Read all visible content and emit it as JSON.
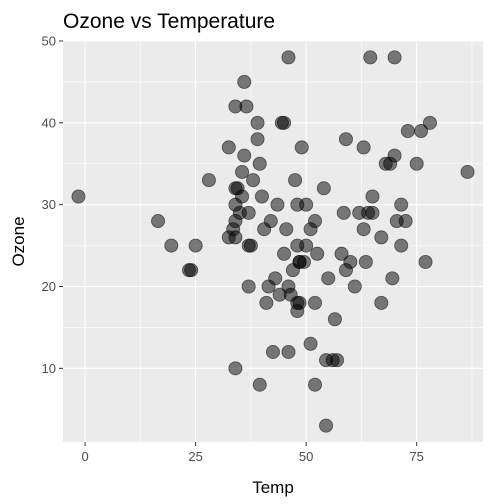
{
  "chart_data": {
    "type": "scatter",
    "title": "Ozone vs Temperature",
    "xlabel": "Temp",
    "ylabel": "Ozone",
    "xlim": [
      -5,
      90
    ],
    "ylim": [
      1,
      50
    ],
    "x_ticks": [
      0,
      25,
      50,
      75
    ],
    "x_tick_labels": [
      "0",
      "25",
      "50",
      "75"
    ],
    "y_ticks": [
      10,
      20,
      30,
      40,
      50
    ],
    "y_tick_labels": [
      "10",
      "20",
      "30",
      "40",
      "50"
    ],
    "x_minor": [
      12.5,
      37.5,
      62.5,
      87.5
    ],
    "y_minor": [
      15,
      25,
      35,
      45
    ],
    "grid": true,
    "colors": {
      "panel": "#ebebeb",
      "point": "#000000"
    },
    "point_alpha": 0.5,
    "points": [
      [
        -1.5,
        31
      ],
      [
        16.5,
        28
      ],
      [
        19.5,
        25
      ],
      [
        23.5,
        22
      ],
      [
        24,
        22
      ],
      [
        25,
        25
      ],
      [
        28,
        33
      ],
      [
        32.5,
        37
      ],
      [
        32.5,
        26
      ],
      [
        33.5,
        27
      ],
      [
        34,
        42
      ],
      [
        34,
        32
      ],
      [
        34,
        30
      ],
      [
        34,
        28
      ],
      [
        34.5,
        32
      ],
      [
        34,
        26
      ],
      [
        34,
        10
      ],
      [
        35,
        29
      ],
      [
        35.5,
        34
      ],
      [
        35.5,
        31
      ],
      [
        36,
        36
      ],
      [
        36,
        45
      ],
      [
        36.5,
        42
      ],
      [
        37,
        29
      ],
      [
        37.5,
        25
      ],
      [
        37,
        25
      ],
      [
        37,
        20
      ],
      [
        38,
        33
      ],
      [
        39,
        40
      ],
      [
        39,
        38
      ],
      [
        39.5,
        8
      ],
      [
        39.5,
        35
      ],
      [
        40,
        31
      ],
      [
        40.5,
        27
      ],
      [
        41,
        18
      ],
      [
        41.5,
        20
      ],
      [
        42,
        28
      ],
      [
        42.5,
        12
      ],
      [
        43,
        21
      ],
      [
        43.5,
        30
      ],
      [
        44,
        19
      ],
      [
        44.5,
        40
      ],
      [
        45,
        40
      ],
      [
        45,
        24
      ],
      [
        45.5,
        27
      ],
      [
        46,
        48
      ],
      [
        46,
        20
      ],
      [
        46,
        12
      ],
      [
        46.5,
        19
      ],
      [
        47,
        22
      ],
      [
        47.5,
        33
      ],
      [
        48,
        30
      ],
      [
        48,
        25
      ],
      [
        48,
        18
      ],
      [
        48,
        17
      ],
      [
        48.5,
        23
      ],
      [
        48.5,
        18
      ],
      [
        48.5,
        23
      ],
      [
        49,
        37
      ],
      [
        49.5,
        23
      ],
      [
        50,
        30
      ],
      [
        50,
        25
      ],
      [
        51,
        13
      ],
      [
        51,
        27
      ],
      [
        52,
        28
      ],
      [
        52,
        18
      ],
      [
        52,
        8
      ],
      [
        52.5,
        24
      ],
      [
        54,
        32
      ],
      [
        54.5,
        11
      ],
      [
        54.5,
        3
      ],
      [
        55,
        21
      ],
      [
        56,
        11
      ],
      [
        56.5,
        16
      ],
      [
        57,
        11
      ],
      [
        58,
        24
      ],
      [
        58.5,
        29
      ],
      [
        59,
        38
      ],
      [
        59,
        22
      ],
      [
        60,
        23
      ],
      [
        61,
        20
      ],
      [
        62,
        29
      ],
      [
        63,
        27
      ],
      [
        63,
        37
      ],
      [
        63.5,
        23
      ],
      [
        64,
        29
      ],
      [
        64.5,
        48
      ],
      [
        65,
        31
      ],
      [
        65,
        29
      ],
      [
        67,
        26
      ],
      [
        67,
        18
      ],
      [
        68,
        35
      ],
      [
        69,
        35
      ],
      [
        69.5,
        21
      ],
      [
        70,
        36
      ],
      [
        70,
        48
      ],
      [
        70.5,
        28
      ],
      [
        71.5,
        25
      ],
      [
        71.5,
        30
      ],
      [
        72.5,
        28
      ],
      [
        73,
        39
      ],
      [
        75,
        35
      ],
      [
        76,
        39
      ],
      [
        77,
        23
      ],
      [
        78,
        40
      ],
      [
        86.5,
        34
      ]
    ]
  }
}
